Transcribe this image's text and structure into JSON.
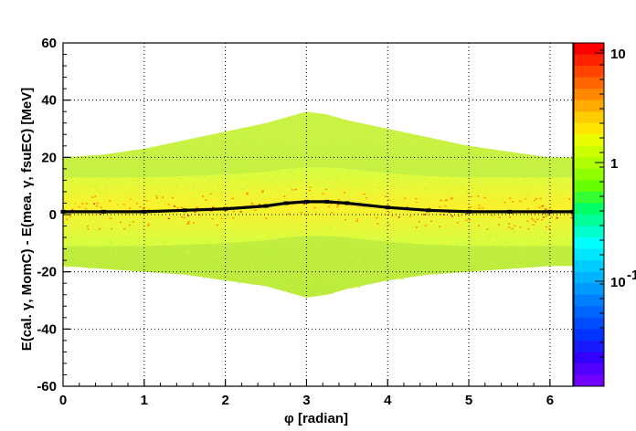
{
  "chart_data": {
    "type": "heatmap",
    "xlabel": "φ [radian]",
    "ylabel": "E(cal. γ, MomC) - E(mea.  γ, fsuEC) [MeV]",
    "xlim": [
      0,
      6.283
    ],
    "ylim": [
      -60,
      60
    ],
    "x_ticks": [
      "0",
      "1",
      "2",
      "3",
      "4",
      "5",
      "6"
    ],
    "y_ticks": [
      "-60",
      "-40",
      "-20",
      "0",
      "20",
      "40",
      "60"
    ],
    "grid": true,
    "log_z": true,
    "colorbar_labels": [
      "10",
      "1",
      "10"
    ],
    "colorbar_label_sup": "-1",
    "colors": {
      "profile": "#000000",
      "grid": "#000000",
      "low": "#c9f23a",
      "mid": "#e8ff2a",
      "high": "#ff8a00",
      "peak": "#d82020"
    },
    "profile": {
      "x": [
        0.0,
        0.5,
        1.0,
        1.5,
        2.0,
        2.5,
        2.75,
        3.0,
        3.25,
        3.5,
        4.0,
        4.5,
        5.0,
        5.5,
        6.0,
        6.283
      ],
      "y": [
        1.0,
        1.0,
        1.0,
        1.5,
        2.0,
        3.0,
        4.0,
        4.5,
        4.5,
        4.0,
        2.5,
        1.5,
        1.0,
        1.0,
        1.0,
        1.0
      ]
    },
    "envelope": {
      "x": [
        0.0,
        0.5,
        1.0,
        1.5,
        2.0,
        2.5,
        2.75,
        3.0,
        3.25,
        3.5,
        4.0,
        4.5,
        5.0,
        5.5,
        6.0,
        6.283
      ],
      "y_upper": [
        20,
        21,
        23,
        26,
        29,
        32,
        34,
        36,
        35,
        33,
        30,
        27,
        24,
        22,
        20,
        20
      ],
      "y_lower": [
        -18,
        -19,
        -20,
        -21,
        -23,
        -25,
        -27,
        -29,
        -28,
        -26,
        -23,
        -21,
        -20,
        -19,
        -18,
        -18
      ]
    }
  }
}
